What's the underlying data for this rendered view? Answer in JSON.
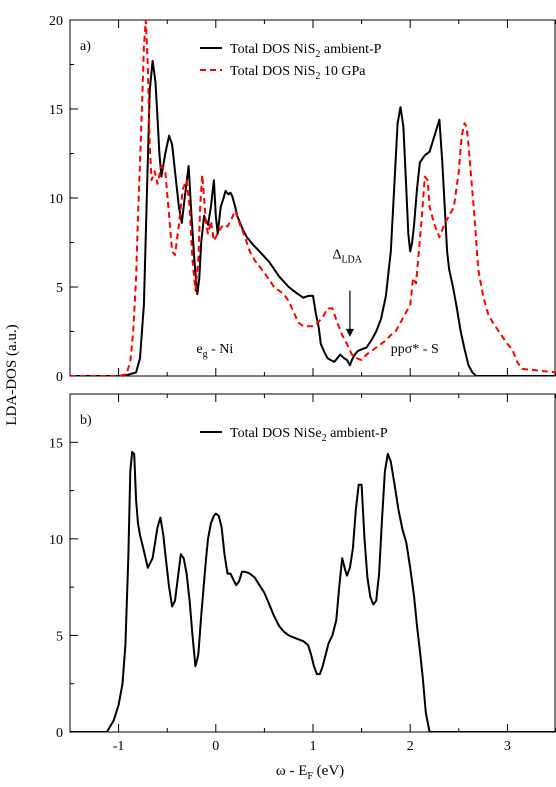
{
  "figure": {
    "ylabel": "LDA-DOS (a.u.)",
    "xlabel_main": "ω - E",
    "xlabel_sub": "F",
    "xlabel_unit": " (eV)",
    "xlim": [
      -1.5,
      3.5
    ],
    "xticks": [
      -1,
      0,
      1,
      2,
      3
    ]
  },
  "chart_data": [
    {
      "type": "line",
      "panel_label": "a)",
      "ylim": [
        0,
        20
      ],
      "yticks": [
        0,
        5,
        10,
        15,
        20
      ],
      "legend": [
        {
          "text": "Total DOS NiS",
          "sub": "2",
          "rest": " ambient-P",
          "color": "#000000",
          "dash": false
        },
        {
          "text": "Total DOS NiS",
          "sub": "2",
          "rest": " 10 GPa",
          "color": "#ff0000",
          "dash": true
        }
      ],
      "annotations": [
        {
          "main": "e",
          "sub": "g",
          "rest": " - Ni",
          "x": -0.2,
          "y": 1.3
        },
        {
          "main": "ppσ* - S",
          "sub": "",
          "rest": "",
          "x": 1.8,
          "y": 1.3
        },
        {
          "main": "Δ",
          "sub": "LDA",
          "rest": "",
          "x": 1.2,
          "y": 6.6
        }
      ],
      "arrow": {
        "x": 1.38,
        "y_from": 4.8,
        "y_to": 2.2
      },
      "series": [
        {
          "name": "Total DOS NiS2 ambient-P",
          "color": "#000000",
          "dash": false,
          "x": [
            -1.5,
            -0.95,
            -0.82,
            -0.78,
            -0.74,
            -0.71,
            -0.68,
            -0.65,
            -0.62,
            -0.6,
            -0.58,
            -0.56,
            -0.52,
            -0.48,
            -0.45,
            -0.42,
            -0.38,
            -0.35,
            -0.32,
            -0.28,
            -0.25,
            -0.22,
            -0.19,
            -0.17,
            -0.15,
            -0.12,
            -0.1,
            -0.08,
            -0.05,
            -0.02,
            0.0,
            0.02,
            0.05,
            0.08,
            0.1,
            0.13,
            0.15,
            0.17,
            0.2,
            0.22,
            0.25,
            0.28,
            0.32,
            0.38,
            0.45,
            0.55,
            0.65,
            0.75,
            0.82,
            0.9,
            0.95,
            1.0,
            1.03,
            1.06,
            1.08,
            1.12,
            1.15,
            1.18,
            1.22,
            1.25,
            1.28,
            1.32,
            1.35,
            1.38,
            1.4,
            1.43,
            1.46,
            1.5,
            1.55,
            1.6,
            1.65,
            1.7,
            1.75,
            1.8,
            1.84,
            1.87,
            1.9,
            1.93,
            1.96,
            1.98,
            2.0,
            2.02,
            2.04,
            2.07,
            2.1,
            2.15,
            2.2,
            2.25,
            2.3,
            2.33,
            2.36,
            2.38,
            2.4,
            2.44,
            2.48,
            2.52,
            2.56,
            2.6,
            2.64,
            2.68,
            3.0,
            3.5
          ],
          "y": [
            0,
            0,
            0.2,
            1.0,
            4.0,
            10.0,
            16.0,
            17.7,
            16.5,
            14.5,
            12.5,
            11.2,
            12.5,
            13.5,
            13.0,
            11.5,
            9.5,
            8.6,
            10.0,
            11.8,
            9.0,
            6.5,
            4.6,
            5.5,
            7.5,
            9.0,
            8.7,
            8.5,
            9.5,
            11.0,
            9.0,
            8.0,
            9.5,
            10.0,
            10.4,
            10.2,
            10.3,
            10.1,
            9.5,
            9.0,
            8.6,
            8.2,
            7.8,
            7.4,
            7.0,
            6.4,
            5.6,
            5.0,
            4.7,
            4.4,
            4.5,
            4.5,
            3.5,
            2.7,
            1.8,
            1.3,
            1.0,
            0.9,
            0.8,
            1.0,
            1.2,
            1.0,
            0.9,
            0.6,
            0.9,
            1.2,
            1.4,
            1.5,
            1.6,
            2.0,
            2.5,
            3.2,
            4.5,
            7.0,
            11.0,
            14.2,
            15.1,
            14.0,
            10.5,
            8.0,
            7.0,
            7.5,
            8.5,
            10.5,
            12.0,
            12.4,
            12.6,
            13.5,
            14.4,
            12.0,
            9.0,
            7.0,
            6.0,
            5.0,
            3.8,
            2.5,
            1.5,
            0.6,
            0.2,
            0,
            0,
            0
          ]
        },
        {
          "name": "Total DOS NiS2 10 GPa",
          "color": "#ff0000",
          "dash": true,
          "x": [
            -1.5,
            -1.0,
            -0.92,
            -0.88,
            -0.85,
            -0.82,
            -0.8,
            -0.78,
            -0.76,
            -0.74,
            -0.72,
            -0.7,
            -0.68,
            -0.66,
            -0.63,
            -0.6,
            -0.56,
            -0.52,
            -0.48,
            -0.45,
            -0.42,
            -0.38,
            -0.34,
            -0.3,
            -0.27,
            -0.24,
            -0.21,
            -0.18,
            -0.16,
            -0.14,
            -0.12,
            -0.1,
            -0.08,
            -0.05,
            -0.02,
            0.0,
            0.02,
            0.05,
            0.08,
            0.12,
            0.16,
            0.2,
            0.25,
            0.3,
            0.35,
            0.4,
            0.5,
            0.6,
            0.7,
            0.75,
            0.8,
            0.85,
            0.9,
            0.95,
            1.0,
            1.05,
            1.1,
            1.15,
            1.2,
            1.25,
            1.3,
            1.35,
            1.4,
            1.45,
            1.5,
            1.55,
            1.6,
            1.65,
            1.7,
            1.75,
            1.8,
            1.85,
            1.9,
            1.95,
            2.0,
            2.03,
            2.06,
            2.09,
            2.12,
            2.15,
            2.18,
            2.2,
            2.25,
            2.3,
            2.35,
            2.4,
            2.45,
            2.5,
            2.53,
            2.56,
            2.58,
            2.6,
            2.63,
            2.66,
            2.7,
            2.75,
            2.8,
            2.85,
            2.9,
            2.95,
            3.0,
            3.05,
            3.1,
            3.15,
            3.5
          ],
          "y": [
            0,
            0,
            0.1,
            0.8,
            2.5,
            5.5,
            9.0,
            12.0,
            15.0,
            18.5,
            20.0,
            17.5,
            13.0,
            11.0,
            11.5,
            10.8,
            11.8,
            11.5,
            9.0,
            7.0,
            6.8,
            8.5,
            10.5,
            11.0,
            9.5,
            6.5,
            4.8,
            6.5,
            9.5,
            11.3,
            10.0,
            8.5,
            8.0,
            8.7,
            7.6,
            7.8,
            8.0,
            8.3,
            8.5,
            8.4,
            8.8,
            9.3,
            8.5,
            7.8,
            7.0,
            6.5,
            5.8,
            5.0,
            4.6,
            4.2,
            3.6,
            3.0,
            2.8,
            2.8,
            2.8,
            3.0,
            3.3,
            3.8,
            3.8,
            3.0,
            2.3,
            1.8,
            1.2,
            1.0,
            0.9,
            1.2,
            1.4,
            1.6,
            1.8,
            2.0,
            2.3,
            2.5,
            3.0,
            3.5,
            4.0,
            5.5,
            5.2,
            7.0,
            9.0,
            11.2,
            11.0,
            9.5,
            8.5,
            7.8,
            8.5,
            9.0,
            9.5,
            11.5,
            13.5,
            14.2,
            14.0,
            13.0,
            11.0,
            9.0,
            6.0,
            4.5,
            3.5,
            3.0,
            2.6,
            2.2,
            1.8,
            1.5,
            0.8,
            0.4,
            0.2
          ]
        }
      ]
    },
    {
      "type": "line",
      "panel_label": "b)",
      "ylim": [
        0,
        17.5
      ],
      "yticks": [
        0,
        5,
        10,
        15
      ],
      "legend": [
        {
          "text": "Total DOS NiSe",
          "sub": "2",
          "rest": " ambient-P",
          "color": "#000000",
          "dash": false
        }
      ],
      "annotations": [],
      "series": [
        {
          "name": "Total DOS NiSe2 ambient-P",
          "color": "#000000",
          "dash": false,
          "x": [
            -1.5,
            -1.12,
            -1.05,
            -1.0,
            -0.96,
            -0.93,
            -0.9,
            -0.88,
            -0.86,
            -0.84,
            -0.82,
            -0.8,
            -0.78,
            -0.75,
            -0.7,
            -0.65,
            -0.6,
            -0.57,
            -0.54,
            -0.51,
            -0.48,
            -0.45,
            -0.42,
            -0.39,
            -0.36,
            -0.33,
            -0.3,
            -0.27,
            -0.24,
            -0.21,
            -0.18,
            -0.15,
            -0.12,
            -0.1,
            -0.08,
            -0.05,
            -0.02,
            0.0,
            0.03,
            0.06,
            0.09,
            0.12,
            0.15,
            0.18,
            0.21,
            0.24,
            0.27,
            0.3,
            0.35,
            0.4,
            0.45,
            0.5,
            0.55,
            0.6,
            0.65,
            0.7,
            0.75,
            0.8,
            0.85,
            0.9,
            0.95,
            0.98,
            1.01,
            1.04,
            1.07,
            1.1,
            1.13,
            1.16,
            1.2,
            1.24,
            1.27,
            1.3,
            1.33,
            1.35,
            1.38,
            1.41,
            1.44,
            1.47,
            1.5,
            1.53,
            1.56,
            1.59,
            1.62,
            1.65,
            1.68,
            1.71,
            1.74,
            1.77,
            1.8,
            1.84,
            1.88,
            1.92,
            1.96,
            2.0,
            2.04,
            2.07,
            2.1,
            2.13,
            2.16,
            2.2,
            2.5,
            3.5
          ],
          "y": [
            0,
            0,
            0.6,
            1.4,
            2.5,
            4.5,
            9.0,
            13.5,
            14.5,
            14.4,
            12.0,
            10.8,
            10.2,
            9.6,
            8.5,
            9.0,
            10.6,
            11.1,
            10.2,
            8.8,
            7.5,
            6.5,
            6.8,
            8.0,
            9.2,
            9.0,
            8.2,
            6.8,
            5.0,
            3.4,
            4.0,
            6.0,
            7.8,
            9.0,
            10.0,
            10.8,
            11.2,
            11.3,
            11.2,
            10.6,
            9.2,
            8.2,
            8.2,
            7.9,
            7.6,
            7.8,
            8.3,
            8.3,
            8.2,
            8.0,
            7.6,
            7.2,
            6.6,
            6.0,
            5.5,
            5.2,
            5.0,
            4.9,
            4.8,
            4.7,
            4.5,
            4.0,
            3.4,
            3.0,
            3.0,
            3.4,
            4.0,
            4.6,
            5.0,
            5.8,
            7.5,
            9.0,
            8.4,
            8.1,
            8.5,
            9.5,
            11.5,
            12.8,
            12.8,
            10.0,
            8.0,
            7.0,
            6.6,
            6.8,
            8.2,
            11.0,
            13.5,
            14.4,
            14.0,
            12.8,
            11.5,
            10.5,
            9.8,
            8.5,
            7.0,
            5.5,
            4.2,
            2.8,
            1.0,
            0,
            0,
            0
          ]
        }
      ]
    }
  ]
}
